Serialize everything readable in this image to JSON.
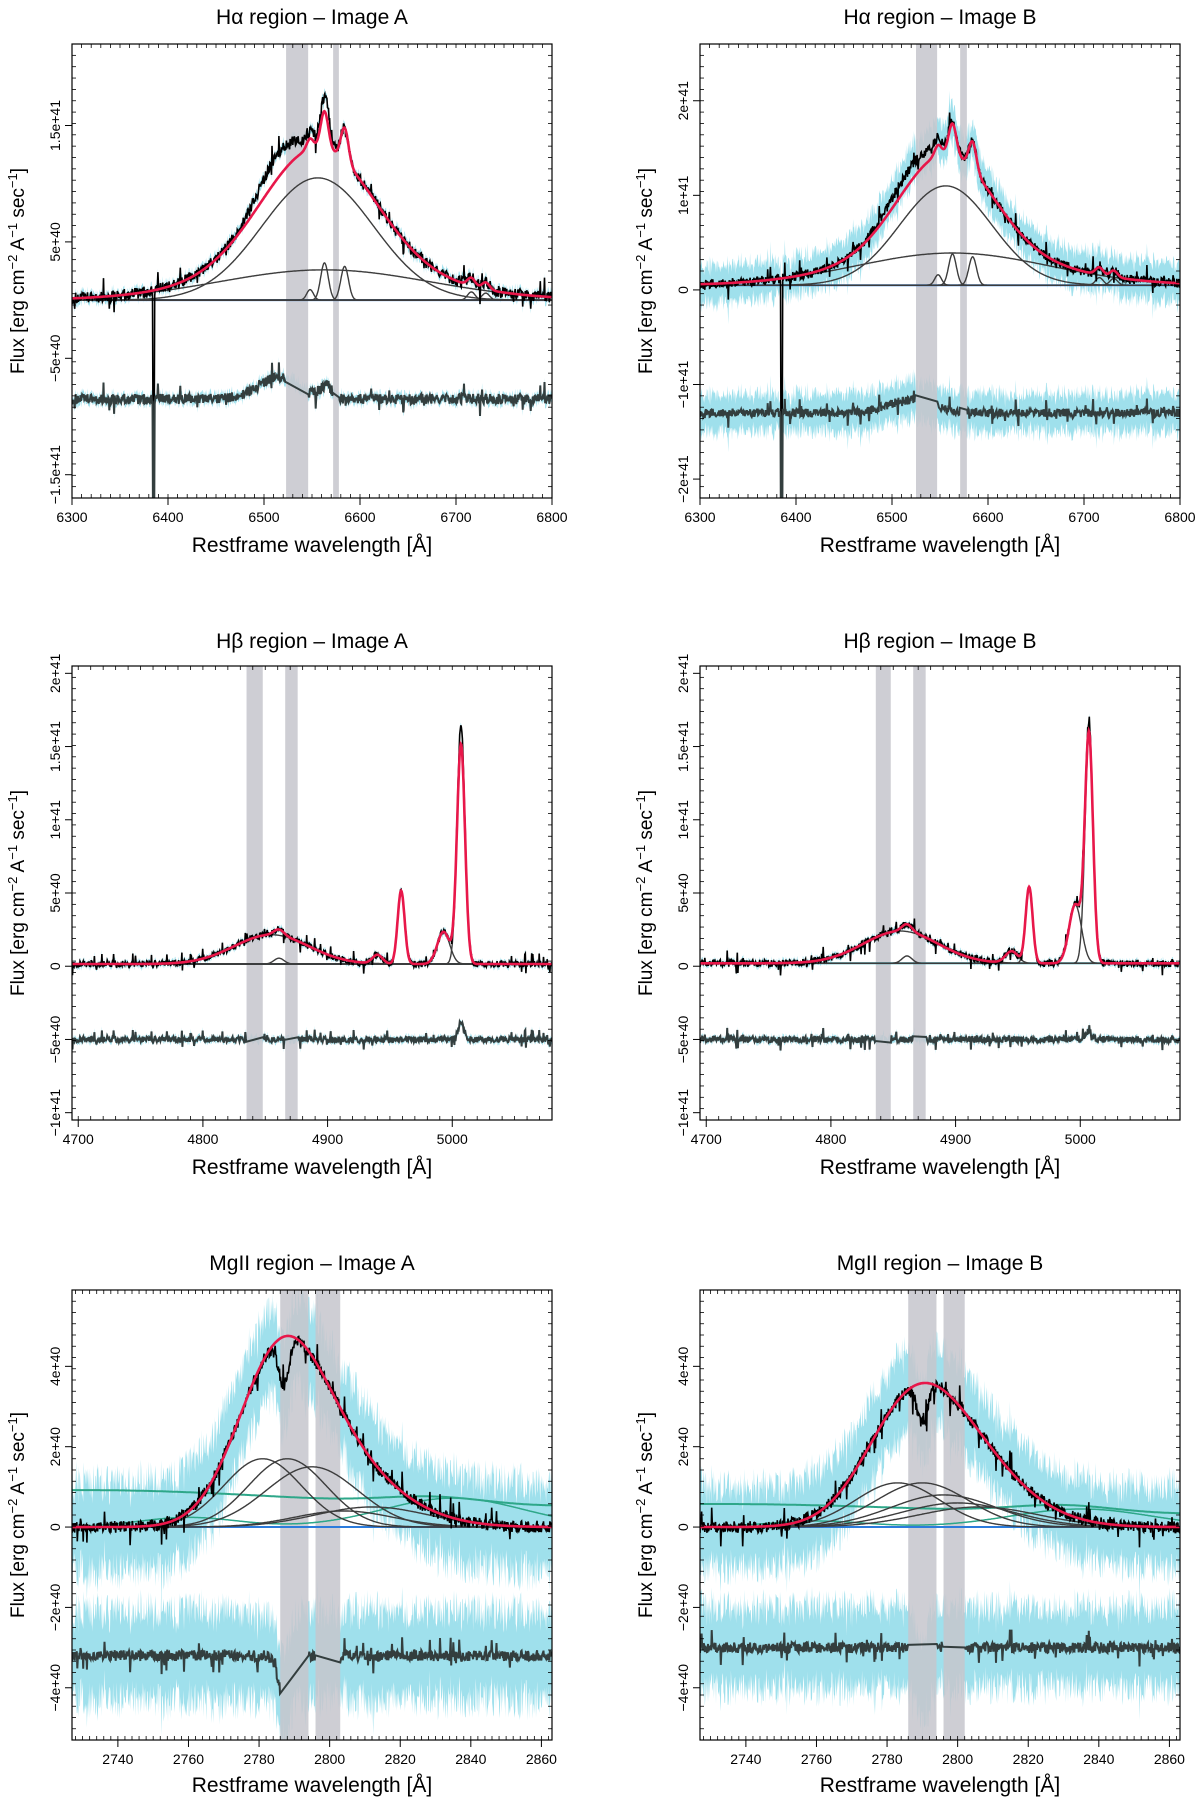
{
  "colors": {
    "observed": "#000000",
    "model_total": "#e8174a",
    "components": "#3c3c3c",
    "continuum_blue": "#2b7bdc",
    "continuum_teal": "#1a9aa8",
    "feii_green": "#2ea789",
    "error_band": "#9fe0ec",
    "masked_region": "#c6c6cc",
    "residual": "#333e3e"
  },
  "chart_data": [
    {
      "type": "line",
      "title": "Hα region – Image A",
      "xlabel": "Restframe wavelength [Å]",
      "ylabel_parts": [
        "Flux [erg cm",
        "−2",
        " A",
        "−1",
        "  sec",
        "−1",
        "]"
      ],
      "xlim": [
        6300,
        6800
      ],
      "ylim": [
        -1.7e+41,
        2.2e+41
      ],
      "xticks": [
        6300,
        6400,
        6500,
        6600,
        6700,
        6800
      ],
      "xtick_labels": [
        "6300",
        "6400",
        "6500",
        "6600",
        "6700",
        "6800"
      ],
      "yticks": [
        -1.5e+41,
        -5e+40,
        5e+40,
        1.5e+41
      ],
      "ytick_labels": [
        "−1.5e+41",
        "−5e+40",
        "5e+40",
        "1.5e+41"
      ],
      "masked_regions": [
        [
          6523,
          6546
        ],
        [
          6572,
          6578
        ]
      ],
      "broad_components": [
        {
          "center": 6556,
          "amplitude": 1.05e+41,
          "sigma": 58
        },
        {
          "center": 6563,
          "amplitude": 2.6e+40,
          "sigma": 110
        }
      ],
      "narrow_lines": [
        {
          "center": 6548,
          "amplitude": 9e+39,
          "sigma": 3.5
        },
        {
          "center": 6563,
          "amplitude": 3.2e+40,
          "sigma": 4
        },
        {
          "center": 6584,
          "amplitude": 2.9e+40,
          "sigma": 4
        },
        {
          "center": 6716,
          "amplitude": 7e+39,
          "sigma": 4
        },
        {
          "center": 6731,
          "amplitude": 6e+39,
          "sigma": 4
        }
      ],
      "observed_excess": [
        {
          "center": 6515,
          "amplitude": 2e+40,
          "sigma": 22
        },
        {
          "center": 6565,
          "amplitude": 1.2e+40,
          "sigma": 6
        }
      ],
      "continuum_level": 0,
      "continuum_style": "blue",
      "feii_level": null,
      "residual_offset": -8.5e+40,
      "noise": 5e+39,
      "spikes": [
        {
          "x": 6385,
          "amplitude": -1.4e+41
        }
      ],
      "error_band_width": 4e+39
    },
    {
      "type": "line",
      "title": "Hα region – Image B",
      "xlabel": "Restframe wavelength [Å]",
      "ylabel_parts": [
        "Flux  [erg cm",
        "−2",
        " A",
        "−1",
        "  sec",
        "−1",
        "]"
      ],
      "xlim": [
        6300,
        6800
      ],
      "ylim": [
        -2.2e+41,
        2.6e+41
      ],
      "xticks": [
        6300,
        6400,
        6500,
        6600,
        6700,
        6800
      ],
      "xtick_labels": [
        "6300",
        "6400",
        "6500",
        "6600",
        "6700",
        "6800"
      ],
      "yticks": [
        -2e+41,
        -1e+41,
        0,
        1e+41,
        2e+41
      ],
      "ytick_labels": [
        "−2e+41",
        "−1e+41",
        "0",
        "1e+41",
        "2e+41"
      ],
      "masked_regions": [
        [
          6525,
          6547
        ],
        [
          6571,
          6578
        ]
      ],
      "broad_components": [
        {
          "center": 6556,
          "amplitude": 1.05e+41,
          "sigma": 48
        },
        {
          "center": 6563,
          "amplitude": 3.4e+40,
          "sigma": 100
        }
      ],
      "narrow_lines": [
        {
          "center": 6548,
          "amplitude": 1.1e+40,
          "sigma": 3.5
        },
        {
          "center": 6563,
          "amplitude": 3.3e+40,
          "sigma": 4
        },
        {
          "center": 6584,
          "amplitude": 3e+40,
          "sigma": 4
        },
        {
          "center": 6716,
          "amplitude": 8e+39,
          "sigma": 4
        },
        {
          "center": 6731,
          "amplitude": 7e+39,
          "sigma": 4
        }
      ],
      "observed_excess": [
        {
          "center": 6520,
          "amplitude": 1.5e+40,
          "sigma": 25
        }
      ],
      "continuum_level": 5e+39,
      "continuum_style": "blue",
      "feii_level": null,
      "residual_offset": -1.3e+41,
      "noise": 5e+39,
      "spikes": [
        {
          "x": 6385,
          "amplitude": -2.1e+41
        }
      ],
      "error_band_width": 2e+40
    },
    {
      "type": "line",
      "title": "Hβ region – Image A",
      "xlabel": "Restframe wavelength [Å]",
      "ylabel_parts": [
        "Flux [erg cm",
        "−2",
        " A",
        "−1",
        "  sec",
        "−1",
        "]"
      ],
      "xlim": [
        4695,
        5080
      ],
      "ylim": [
        -1.05e+41,
        2.05e+41
      ],
      "xticks": [
        4700,
        4800,
        4900,
        5000
      ],
      "xtick_labels": [
        "4700",
        "4800",
        "4900",
        "5000"
      ],
      "yticks": [
        -1e+41,
        -5e+40,
        0,
        5e+40,
        1e+41,
        1.5e+41,
        2e+41
      ],
      "ytick_labels": [
        "−1e+41",
        "−5e+40",
        "0",
        "5e+40",
        "1e+41",
        "1.5e+41",
        "2e+41"
      ],
      "masked_regions": [
        [
          4835,
          4848
        ],
        [
          4866,
          4876
        ]
      ],
      "broad_components": [
        {
          "center": 4855,
          "amplitude": 2e+40,
          "sigma": 30
        }
      ],
      "narrow_lines": [
        {
          "center": 4861,
          "amplitude": 4e+39,
          "sigma": 4
        },
        {
          "center": 4940,
          "amplitude": 6e+39,
          "sigma": 4
        },
        {
          "center": 4959,
          "amplitude": 5e+40,
          "sigma": 2.8
        },
        {
          "center": 4993,
          "amplitude": 2.2e+40,
          "sigma": 5
        },
        {
          "center": 5007,
          "amplitude": 1.5e+41,
          "sigma": 3.2
        }
      ],
      "observed_excess": [
        {
          "center": 5007,
          "amplitude": 1.2e+40,
          "sigma": 2.5
        }
      ],
      "continuum_level": 1.5e+39,
      "continuum_style": "teal",
      "feii_level": null,
      "residual_offset": -5e+40,
      "noise": 2.2e+39,
      "spikes": [],
      "error_band_width": 2e+39
    },
    {
      "type": "line",
      "title": "Hβ region – Image B",
      "xlabel": "Restframe wavelength [Å]",
      "ylabel_parts": [
        "Flux [erg cm",
        "−2",
        " A",
        "−1",
        "  sec",
        "−1",
        "]"
      ],
      "xlim": [
        4695,
        5080
      ],
      "ylim": [
        -1.05e+41,
        2.05e+41
      ],
      "xticks": [
        4700,
        4800,
        4900,
        5000
      ],
      "xtick_labels": [
        "4700",
        "4800",
        "4900",
        "5000"
      ],
      "yticks": [
        -1e+41,
        -5e+40,
        0,
        5e+40,
        1e+41,
        1.5e+41,
        2e+41
      ],
      "ytick_labels": [
        "−1e+41",
        "−5e+40",
        "0",
        "5e+40",
        "1e+41",
        "1.5e+41",
        "2e+41"
      ],
      "masked_regions": [
        [
          4836,
          4848
        ],
        [
          4866,
          4876
        ]
      ],
      "broad_components": [
        {
          "center": 4856,
          "amplitude": 2.2e+40,
          "sigma": 30
        }
      ],
      "narrow_lines": [
        {
          "center": 4861,
          "amplitude": 5e+39,
          "sigma": 4
        },
        {
          "center": 4945,
          "amplitude": 8e+39,
          "sigma": 5
        },
        {
          "center": 4959,
          "amplitude": 5.2e+40,
          "sigma": 2.8
        },
        {
          "center": 4996,
          "amplitude": 4e+40,
          "sigma": 5
        },
        {
          "center": 5007,
          "amplitude": 1.55e+41,
          "sigma": 3.2
        }
      ],
      "observed_excess": [
        {
          "center": 5007,
          "amplitude": 6e+39,
          "sigma": 2.5
        }
      ],
      "continuum_level": 2e+39,
      "continuum_style": "teal",
      "feii_level": null,
      "residual_offset": -5e+40,
      "noise": 2.5e+39,
      "spikes": [],
      "error_band_width": 2e+39
    },
    {
      "type": "line",
      "title": "MgII region – Image A",
      "xlabel": "Restframe wavelength [Å]",
      "ylabel_parts": [
        "Flux [erg cm",
        "−2",
        " A",
        "−1",
        "  sec",
        "−1",
        "]"
      ],
      "xlim": [
        2727,
        2863
      ],
      "ylim": [
        -5.3e+40,
        5.9e+40
      ],
      "xticks": [
        2740,
        2760,
        2780,
        2800,
        2820,
        2840,
        2860
      ],
      "xtick_labels": [
        "2740",
        "2760",
        "2780",
        "2800",
        "2820",
        "2840",
        "2860"
      ],
      "yticks": [
        -4e+40,
        -2e+40,
        0,
        2e+40,
        4e+40
      ],
      "ytick_labels": [
        "−4e+40",
        "−2e+40",
        "0",
        "2e+40",
        "4e+40"
      ],
      "masked_regions": [
        [
          2786,
          2794
        ],
        [
          2796,
          2803
        ]
      ],
      "broad_components": [
        {
          "center": 2781,
          "amplitude": 1.7e+40,
          "sigma": 11
        },
        {
          "center": 2788,
          "amplitude": 1.7e+40,
          "sigma": 11
        },
        {
          "center": 2795,
          "amplitude": 1.5e+40,
          "sigma": 13
        },
        {
          "center": 2804,
          "amplitude": 4e+39,
          "sigma": 14
        },
        {
          "center": 2812,
          "amplitude": 5e+39,
          "sigma": 16
        }
      ],
      "narrow_lines": [],
      "observed_excess": [
        {
          "center": 2787,
          "amplitude": -1.2e+40,
          "sigma": 1.5
        }
      ],
      "continuum_level": 0,
      "continuum_style": "blue",
      "feii_level": 8e+39,
      "residual_offset": -3.2e+40,
      "noise": 1.5e+39,
      "spikes": [],
      "error_band_width": 1.1e+40
    },
    {
      "type": "line",
      "title": "MgII region – Image B",
      "xlabel": "Restframe wavelength [Å]",
      "ylabel_parts": [
        "Flux [erg cm",
        "−2",
        " A",
        "−1",
        "  sec",
        "−1",
        "]"
      ],
      "xlim": [
        2727,
        2863
      ],
      "ylim": [
        -5.3e+40,
        5.9e+40
      ],
      "xticks": [
        2740,
        2760,
        2780,
        2800,
        2820,
        2840,
        2860
      ],
      "xtick_labels": [
        "2740",
        "2760",
        "2780",
        "2800",
        "2820",
        "2840",
        "2860"
      ],
      "yticks": [
        -4e+40,
        -2e+40,
        0,
        2e+40,
        4e+40
      ],
      "ytick_labels": [
        "−4e+40",
        "−2e+40",
        "0",
        "2e+40",
        "4e+40"
      ],
      "masked_regions": [
        [
          2786,
          2794
        ],
        [
          2796,
          2802
        ]
      ],
      "broad_components": [
        {
          "center": 2783,
          "amplitude": 1.1e+40,
          "sigma": 12
        },
        {
          "center": 2790,
          "amplitude": 1.1e+40,
          "sigma": 13
        },
        {
          "center": 2796,
          "amplitude": 8e+39,
          "sigma": 15
        },
        {
          "center": 2800,
          "amplitude": 6e+39,
          "sigma": 16
        },
        {
          "center": 2806,
          "amplitude": 5e+39,
          "sigma": 17
        }
      ],
      "narrow_lines": [],
      "observed_excess": [
        {
          "center": 2790,
          "amplitude": -1e+40,
          "sigma": 1.5
        }
      ],
      "continuum_level": 0,
      "continuum_style": "blue",
      "feii_level": 5e+39,
      "residual_offset": -3e+40,
      "noise": 1.5e+39,
      "spikes": [],
      "error_band_width": 1e+40
    }
  ]
}
